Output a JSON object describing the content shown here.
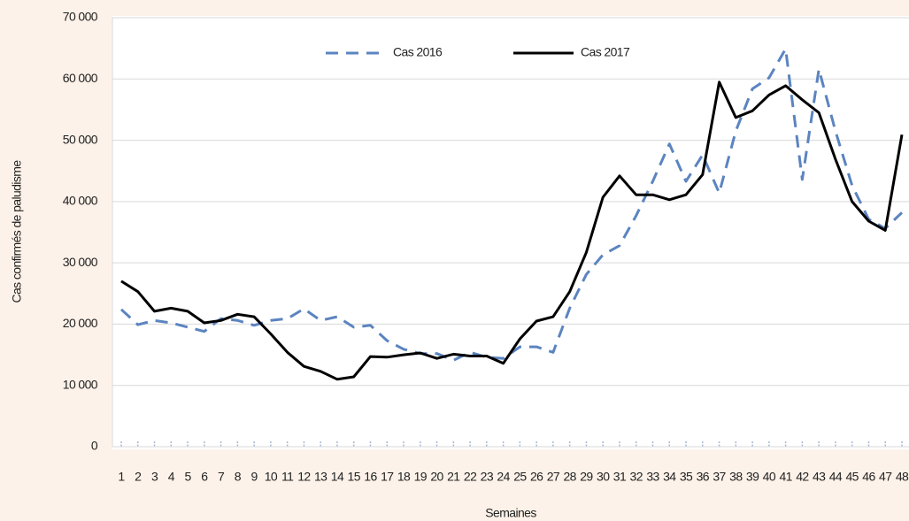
{
  "chart_data": {
    "type": "line",
    "ylabel": "Cas confirmés de paludisme",
    "xlabel": "Semaines",
    "categories": [
      1,
      2,
      3,
      4,
      5,
      6,
      7,
      8,
      9,
      10,
      11,
      12,
      13,
      14,
      15,
      16,
      17,
      18,
      19,
      20,
      21,
      22,
      23,
      24,
      25,
      26,
      27,
      28,
      29,
      30,
      31,
      32,
      33,
      34,
      35,
      36,
      37,
      38,
      39,
      40,
      41,
      42,
      43,
      44,
      45,
      46,
      47,
      48
    ],
    "series": [
      {
        "name": "Cas 2016",
        "color": "#5b84c0",
        "dashed": true,
        "values": [
          22400,
          19900,
          20600,
          20200,
          19500,
          18800,
          20900,
          20600,
          19800,
          20600,
          20900,
          22500,
          20600,
          21200,
          19500,
          19800,
          17300,
          15900,
          15200,
          15200,
          14100,
          15400,
          14600,
          14400,
          16300,
          16300,
          15400,
          22600,
          28100,
          31300,
          32800,
          37700,
          43300,
          49400,
          43300,
          47600,
          41400,
          51500,
          58400,
          60200,
          64900,
          43600,
          61600,
          51500,
          42600,
          37100,
          35600,
          38200
        ]
      },
      {
        "name": "Cas 2017",
        "color": "#000000",
        "dashed": false,
        "values": [
          27000,
          25300,
          22100,
          22600,
          22100,
          20200,
          20600,
          21600,
          21200,
          18400,
          15400,
          13100,
          12300,
          11000,
          11400,
          14700,
          14600,
          15000,
          15300,
          14400,
          15100,
          14800,
          14800,
          13600,
          17600,
          20500,
          21200,
          25300,
          31700,
          40700,
          44200,
          41100,
          41100,
          40300,
          41100,
          44400,
          59500,
          53700,
          54800,
          57400,
          58900,
          56600,
          54500,
          46900,
          40000,
          36800,
          35300,
          50900
        ]
      }
    ],
    "ylim": [
      0,
      70000
    ],
    "yticks": [
      0,
      {
        "value": 10000,
        "label": "10 000"
      },
      {
        "value": 20000,
        "label": "20 000"
      },
      {
        "value": 30000,
        "label": "30 000"
      },
      {
        "value": 40000,
        "label": "40 000"
      },
      {
        "value": 50000,
        "label": "50 000"
      },
      {
        "value": 60000,
        "label": "60 000"
      },
      {
        "value": 70000,
        "label": "70 000"
      }
    ],
    "grid": true,
    "legend": "top"
  }
}
